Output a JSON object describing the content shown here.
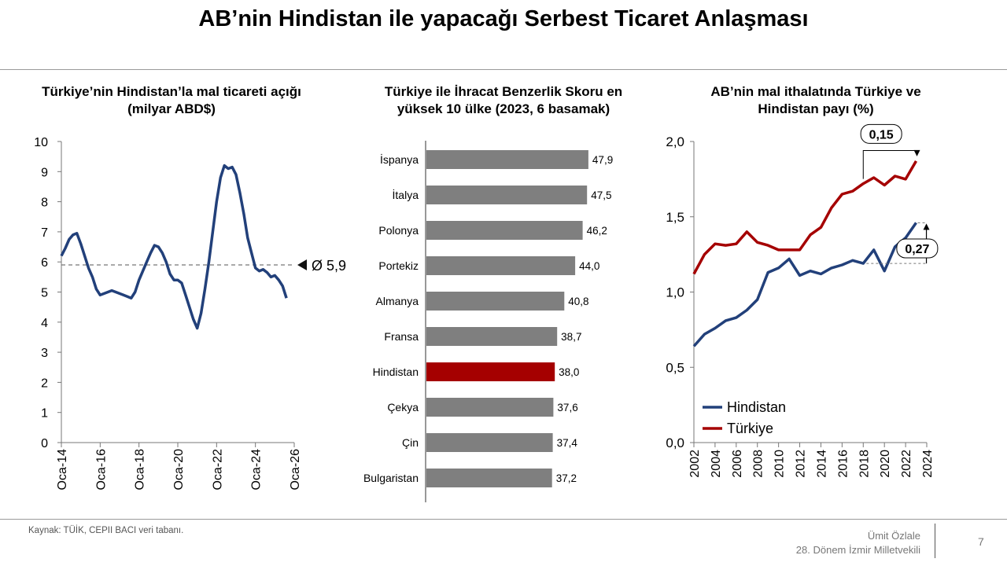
{
  "page": {
    "title": "AB’nin Hindistan ile yapacağı Serbest Ticaret Anlaşması",
    "source": "Kaynak: TÜİK, CEPII BACI veri tabanı.",
    "author_name": "Ümit Özlale",
    "author_role": "28. Dönem İzmir Milletvekili",
    "page_number": "7"
  },
  "chart_data": [
    {
      "type": "line",
      "title_line1": "Türkiye’nin Hindistan’la mal ticareti açığı",
      "title_line2": "(milyar ABD$)",
      "ylim": [
        0,
        10
      ],
      "yticks": [
        "0",
        "1",
        "2",
        "3",
        "4",
        "5",
        "6",
        "7",
        "8",
        "9",
        "10"
      ],
      "xlim": [
        2014.0,
        2026.0
      ],
      "xticks": [
        2014,
        2016,
        2018,
        2020,
        2022,
        2024,
        2026
      ],
      "xtick_labels": [
        "Oca-14",
        "Oca-16",
        "Oca-18",
        "Oca-20",
        "Oca-22",
        "Oca-24",
        "Oca-26"
      ],
      "average": 5.9,
      "average_label": "Ø 5,9",
      "line_color": "#22407a",
      "series": [
        {
          "name": "Ticaret açığı",
          "x": [
            2014.0,
            2014.2,
            2014.4,
            2014.6,
            2014.8,
            2015.0,
            2015.2,
            2015.4,
            2015.6,
            2015.8,
            2016.0,
            2016.2,
            2016.4,
            2016.6,
            2016.8,
            2017.0,
            2017.2,
            2017.4,
            2017.6,
            2017.8,
            2018.0,
            2018.2,
            2018.4,
            2018.6,
            2018.8,
            2019.0,
            2019.2,
            2019.4,
            2019.6,
            2019.8,
            2020.0,
            2020.2,
            2020.4,
            2020.6,
            2020.8,
            2021.0,
            2021.2,
            2021.4,
            2021.6,
            2021.8,
            2022.0,
            2022.2,
            2022.4,
            2022.6,
            2022.8,
            2023.0,
            2023.2,
            2023.4,
            2023.6,
            2023.8,
            2024.0,
            2024.2,
            2024.4,
            2024.6,
            2024.8,
            2025.0,
            2025.2,
            2025.4,
            2025.6
          ],
          "values": [
            6.2,
            6.45,
            6.75,
            6.9,
            6.95,
            6.6,
            6.2,
            5.8,
            5.5,
            5.1,
            4.9,
            4.95,
            5.0,
            5.05,
            5.0,
            4.95,
            4.9,
            4.85,
            4.8,
            5.0,
            5.4,
            5.7,
            6.0,
            6.3,
            6.55,
            6.5,
            6.3,
            6.0,
            5.6,
            5.4,
            5.4,
            5.3,
            4.9,
            4.5,
            4.1,
            3.8,
            4.3,
            5.1,
            6.0,
            7.0,
            8.0,
            8.8,
            9.2,
            9.1,
            9.15,
            8.9,
            8.3,
            7.6,
            6.8,
            6.3,
            5.8,
            5.7,
            5.75,
            5.65,
            5.5,
            5.55,
            5.4,
            5.2,
            4.8
          ]
        }
      ]
    },
    {
      "type": "bar",
      "orientation": "horizontal",
      "title_line1": "Türkiye ile İhracat Benzerlik Skoru en",
      "title_line2": "yüksek 10 ülke (2023, 6 basamak)",
      "xlim": [
        0,
        50
      ],
      "categories": [
        "İspanya",
        "İtalya",
        "Polonya",
        "Portekiz",
        "Almanya",
        "Fransa",
        "Hindistan",
        "Çekya",
        "Çin",
        "Bulgaristan"
      ],
      "values": [
        47.9,
        47.5,
        46.2,
        44.0,
        40.8,
        38.7,
        38.0,
        37.6,
        37.4,
        37.2
      ],
      "value_labels": [
        "47,9",
        "47,5",
        "46,2",
        "44,0",
        "40,8",
        "38,7",
        "38,0",
        "37,6",
        "37,4",
        "37,2"
      ],
      "bar_color": "#7f7f7f",
      "highlight_category": "Hindistan",
      "highlight_color": "#a50000"
    },
    {
      "type": "line",
      "title_line1": "AB’nin mal ithalatında Türkiye ve",
      "title_line2": "Hindistan payı (%)",
      "ylim": [
        0,
        2.0
      ],
      "yticks": [
        0,
        0.5,
        1.0,
        1.5,
        2.0
      ],
      "ytick_labels": [
        "0,0",
        "0,5",
        "1,0",
        "1,5",
        "2,0"
      ],
      "xlim": [
        2002,
        2024
      ],
      "xticks": [
        2002,
        2004,
        2006,
        2008,
        2010,
        2012,
        2014,
        2016,
        2018,
        2020,
        2022,
        2024
      ],
      "xtick_labels": [
        "2002",
        "2004",
        "2006",
        "2008",
        "2010",
        "2012",
        "2014",
        "2016",
        "2018",
        "2020",
        "2022",
        "2024"
      ],
      "x": [
        2002,
        2003,
        2004,
        2005,
        2006,
        2007,
        2008,
        2009,
        2010,
        2011,
        2012,
        2013,
        2014,
        2015,
        2016,
        2017,
        2018,
        2019,
        2020,
        2021,
        2022,
        2023
      ],
      "series": [
        {
          "name": "Hindistan",
          "color": "#22407a",
          "values": [
            0.64,
            0.72,
            0.76,
            0.81,
            0.83,
            0.88,
            0.95,
            1.13,
            1.16,
            1.22,
            1.11,
            1.14,
            1.12,
            1.16,
            1.18,
            1.21,
            1.19,
            1.28,
            1.14,
            1.3,
            1.36,
            1.46
          ]
        },
        {
          "name": "Türkiye",
          "color": "#a50000",
          "values": [
            1.12,
            1.25,
            1.32,
            1.31,
            1.32,
            1.4,
            1.33,
            1.31,
            1.28,
            1.28,
            1.28,
            1.38,
            1.43,
            1.56,
            1.65,
            1.67,
            1.72,
            1.76,
            1.71,
            1.77,
            1.75,
            1.87
          ]
        }
      ],
      "legend_position": "bottom-left",
      "annotations": [
        {
          "label": "0,15",
          "from_year": 2018,
          "to_year": 2023,
          "series": "Türkiye",
          "value_change": 0.15
        },
        {
          "label": "0,27",
          "year": 2023,
          "between": [
            "Hindistan 2018 düzeyi",
            "Hindistan 2023"
          ],
          "value_change": 0.27
        }
      ]
    }
  ]
}
